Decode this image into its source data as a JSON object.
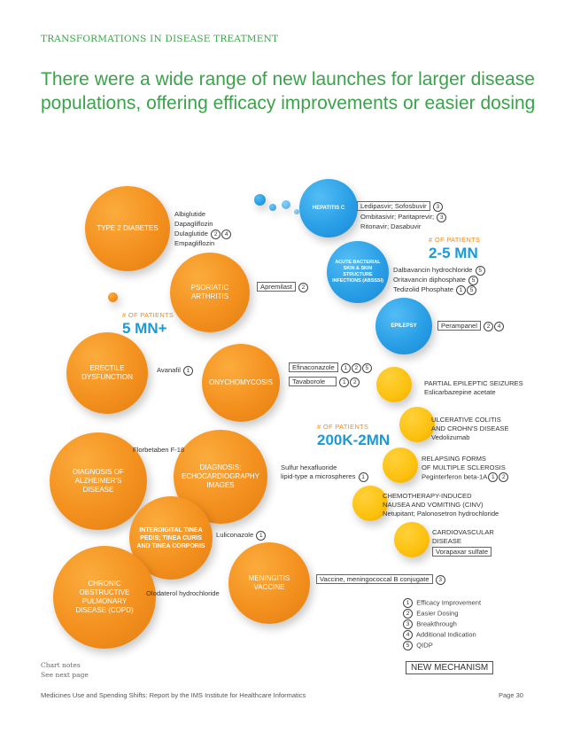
{
  "section_title": "TRANSFORMATIONS IN DISEASE TREATMENT",
  "headline": "There were a wide range of new launches for larger disease populations, offering efficacy improvements or easier dosing",
  "groups": {
    "large": {
      "label": "# OF PATIENTS",
      "value": "5 MN+"
    },
    "medium": {
      "label": "# OF PATIENTS",
      "value": "2-5 MN"
    },
    "small": {
      "label": "# OF PATIENTS",
      "value": "200K-2MN"
    }
  },
  "diseases": {
    "type2_diabetes": "TYPE 2 DIABETES",
    "psoriatic_arthritis": "PSORIATIC ARTHRITIS",
    "hepatitis_c": "HEPATITIS C",
    "absssi": "ACUTE BACTERIAL SKIN & SKIN STRUCTURE INFECTIONS (ABSSSI)",
    "epilepsy": "EPILEPSY",
    "erectile": "ERECTILE DYSFUNCTION",
    "onychomycosis": "ONYCHOMYCOSIS",
    "alzheimers": "DIAGNOSIS OF ALZHEIMER'S DISEASE",
    "echo": "DIAGNOSIS; ECHOCARDIOGRAPHY IMAGES",
    "tinea": "INTERDIGITAL TINEA PEDIS; TINEA CURIS AND TINEA CORPORIS",
    "copd": "CHRONIC OBSTRUCTIVE PULMONARY DISEASE (COPD)",
    "meningitis": "MENINGITIS VACCINE"
  },
  "drugs": {
    "diabetes_1": "Albiglutide",
    "diabetes_2": "Dapagliflozin",
    "diabetes_3": "Dulaglutide",
    "diabetes_3_notes": [
      "2",
      "4"
    ],
    "diabetes_4": "Empagliflozin",
    "apremilast": "Apremilast",
    "apremilast_notes": [
      "2"
    ],
    "hepc_1": "Ledipasvir; Sofosbuvir",
    "hepc_1_notes": [
      "3"
    ],
    "hepc_2": "Ombitasivir; Paritaprevir;",
    "hepc_2_notes": [
      "3"
    ],
    "hepc_3": "Ritonavir; Dasabuvir",
    "absssi_1": "Dalbavancin hydrochloride",
    "absssi_1_notes": [
      "5"
    ],
    "absssi_2": "Oritavancin diphosphate",
    "absssi_2_notes": [
      "5"
    ],
    "absssi_3": "Tedizolid Phosphate",
    "absssi_3_notes": [
      "1",
      "5"
    ],
    "perampanel": "Perampanel",
    "perampanel_notes": [
      "2",
      "4"
    ],
    "avanafil": "Avanafil",
    "avanafil_notes": [
      "1"
    ],
    "efinaconazole": "Efinaconazole",
    "efinaconazole_notes": [
      "1",
      "2",
      "5"
    ],
    "tavaborole": "Tavaborole",
    "tavaborole_notes": [
      "1",
      "2"
    ],
    "florbetaben": "Florbetaben F-18",
    "sulfur_1": "Sulfur hexafluoride",
    "sulfur_2": "lipid-type a microspheres",
    "sulfur_notes": [
      "1"
    ],
    "luliconazole": "Luliconazole",
    "luliconazole_notes": [
      "1"
    ],
    "olodaterol": "Olodaterol hydrochloride",
    "vaccine": "Vaccine, meningococcal B conjugate",
    "vaccine_notes": [
      "3"
    ]
  },
  "small_group_items": {
    "pes_1": "PARTIAL EPILEPTIC SEIZURES",
    "pes_2": "Eslicarbazepine acetate",
    "uc_1": "ULCERATIVE COLITIS",
    "uc_2": "AND CROHN'S DISEASE",
    "uc_3": "Vedolizumab",
    "ms_1": "RELAPSING FORMS",
    "ms_2": "OF MULTIPLE SCLEROSIS",
    "ms_3": "Peginterferon beta-1A",
    "ms_notes": [
      "1",
      "2"
    ],
    "cinv_1": "CHEMOTHERAPY-INDUCED",
    "cinv_2": "NAUSEA AND VOMITING (CINV)",
    "cinv_3": "Netupitant; Palonosetron hydrochloride",
    "cv_1": "CARDIOVASCULAR",
    "cv_2": "DISEASE",
    "cv_3": "Vorapaxar sulfate"
  },
  "legend": [
    {
      "num": "1",
      "label": "Efficacy Improvement"
    },
    {
      "num": "2",
      "label": "Easier Dosing"
    },
    {
      "num": "3",
      "label": "Breakthrough"
    },
    {
      "num": "4",
      "label": "Additional Indication"
    },
    {
      "num": "5",
      "label": "QIDP"
    }
  ],
  "new_mechanism": "NEW MECHANISM",
  "chart_notes_1": "Chart notes",
  "chart_notes_2": "See next page",
  "footer_source": "Medicines Use and Spending Shifts: Report by the IMS Institute for Healthcare Informatics",
  "page_number": "Page 30",
  "colors": {
    "green": "#3aa34a",
    "orange": "#f3901e",
    "yellow": "#fcc10e",
    "blue": "#2a9fe6"
  }
}
